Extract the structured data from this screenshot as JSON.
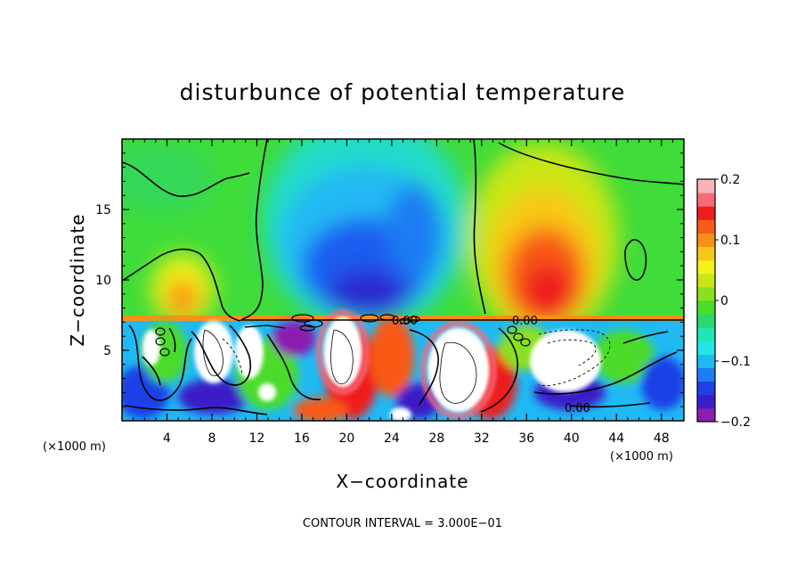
{
  "chart_data": {
    "type": "heatmap",
    "title": "disturbunce of potential temperature",
    "xlabel": "X−coordinate",
    "ylabel": "Z−coordinate",
    "x_unit": "(×1000 m)",
    "z_unit": "(×1000 m)",
    "xlim": [
      0,
      50
    ],
    "ylim": [
      0,
      20
    ],
    "x_ticks": [
      4,
      8,
      12,
      16,
      20,
      24,
      28,
      32,
      36,
      40,
      44,
      48
    ],
    "y_ticks": [
      5,
      10,
      15
    ],
    "colorbar": {
      "range": [
        -0.2,
        0.2
      ],
      "tick_labels": [
        "0.2",
        "0.1",
        "0",
        "−0.1",
        "−0.2"
      ],
      "tick_values": [
        0.2,
        0.1,
        0,
        -0.1,
        -0.2
      ],
      "colors": [
        "#8b1fae",
        "#3a1fc8",
        "#1f3fe8",
        "#1f7cf2",
        "#20b9f4",
        "#22e6e6",
        "#20e6b0",
        "#2ad870",
        "#4cdc2c",
        "#8ae020",
        "#c8e618",
        "#f2f218",
        "#f8c818",
        "#f89018",
        "#f85a18",
        "#ee1e1e",
        "#f86a7a",
        "#f8b4b4"
      ]
    },
    "contour_labels": [
      "0.00",
      "0.00",
      "0.00"
    ],
    "footer": "CONTOUR INTERVAL = 3.000E−01"
  }
}
